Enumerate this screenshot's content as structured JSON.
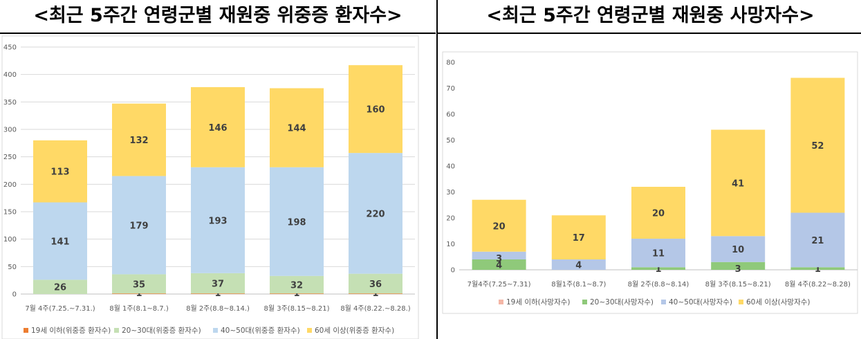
{
  "titles": {
    "left": "<최근 5주간 연령군별 재원중 위중증 환자수>",
    "right": "<최근 5주간 연령군별 재원중 사망자수>"
  },
  "colors": {
    "age_under19_left": "#ED7D31",
    "age_under19_right": "#F4B6A6",
    "age_20_30": "#C5E0B4",
    "age_20_30_right": "#8FC97A",
    "age_40_50": "#BDD7EE",
    "age_40_50_right": "#B4C7E7",
    "age_60plus": "#FFD966"
  },
  "chart_data": [
    {
      "type": "bar",
      "stacked": true,
      "title": "",
      "categories": [
        "7월 4주(7.25.~7.31.)",
        "8월 1주(8.1~8.7.)",
        "8월 2주(8.8~8.14.)",
        "8월 3주(8.15~8.21)",
        "8월 4주(8.22.~8.28.)"
      ],
      "series": [
        {
          "name": "19세 이하(위중증 환자수)",
          "values": [
            0,
            1,
            1,
            1,
            1
          ],
          "labels": [
            "",
            "1",
            "1",
            "1",
            "1"
          ]
        },
        {
          "name": "20~30대(위중증 환자수)",
          "values": [
            26,
            35,
            37,
            32,
            36
          ],
          "labels": [
            "26",
            "35",
            "37",
            "32",
            "36"
          ]
        },
        {
          "name": "40~50대(위중증 환자수)",
          "values": [
            141,
            179,
            193,
            198,
            220
          ],
          "labels": [
            "141",
            "179",
            "193",
            "198",
            "220"
          ]
        },
        {
          "name": "60세 이상(위중증 환자수)",
          "values": [
            113,
            132,
            146,
            144,
            160
          ],
          "labels": [
            "113",
            "132",
            "146",
            "144",
            "160"
          ]
        }
      ],
      "ylim": [
        0,
        450
      ],
      "yticks": [
        "0",
        "50",
        "100",
        "150",
        "200",
        "250",
        "300",
        "350",
        "400",
        "450"
      ],
      "grid": true,
      "legend": "bottom"
    },
    {
      "type": "bar",
      "stacked": true,
      "title": "",
      "categories": [
        "7월4주(7.25~7.31)",
        "8월1주(8.1~8.7)",
        "8월 2주(8.8~8.14)",
        "8월 3주(8.15~8.21)",
        "8월 4주(8.22~8.28)"
      ],
      "series": [
        {
          "name": "19세 이하(사망자수)",
          "values": [
            0,
            0,
            0,
            0,
            0
          ],
          "labels": [
            "",
            "",
            "",
            "",
            ""
          ]
        },
        {
          "name": "20~30대(사망자수)",
          "values": [
            4,
            0,
            1,
            3,
            1
          ],
          "labels": [
            "4",
            "",
            "1",
            "3",
            "1"
          ]
        },
        {
          "name": "40~50대(사망자수)",
          "values": [
            3,
            4,
            11,
            10,
            21
          ],
          "labels": [
            "3",
            "4",
            "11",
            "10",
            "21"
          ]
        },
        {
          "name": "60세 이상(사망자수)",
          "values": [
            20,
            17,
            20,
            41,
            52
          ],
          "labels": [
            "20",
            "17",
            "20",
            "41",
            "52"
          ]
        }
      ],
      "ylim": [
        0,
        80
      ],
      "yticks": [
        "0",
        "10",
        "20",
        "30",
        "40",
        "50",
        "60",
        "70",
        "80"
      ],
      "grid": false,
      "legend": "bottom"
    }
  ]
}
